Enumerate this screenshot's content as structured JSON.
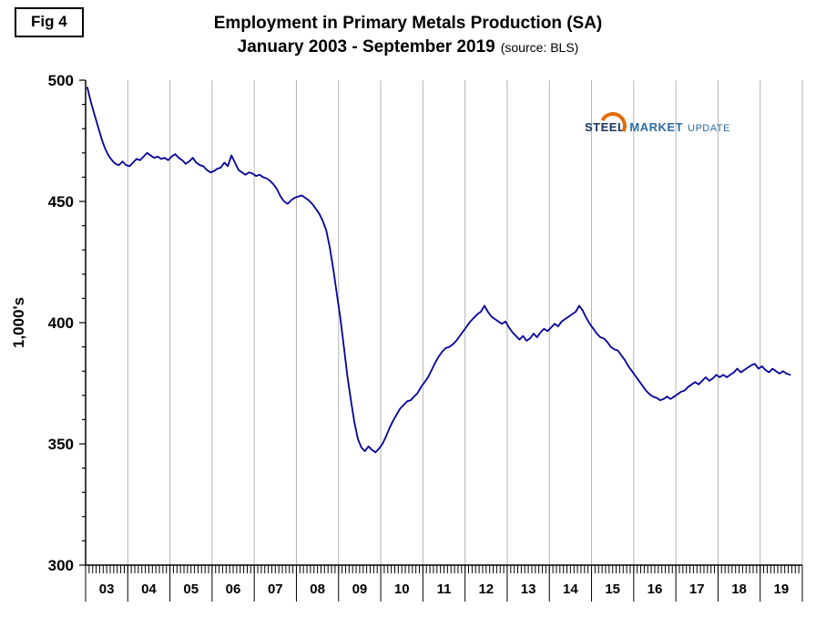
{
  "fig_label": "Fig 4",
  "logo": {
    "word1": "STEEL",
    "word2": "MARKET",
    "word3": "UPDATE",
    "swoosh_color": "#e36c0a"
  },
  "chart_data": {
    "type": "line",
    "title": "Employment in Primary Metals Production (SA)",
    "subtitle": "January 2003 - September 2019",
    "source": "(source: BLS)",
    "ylabel": "1,000's",
    "ylim": [
      300,
      500
    ],
    "y_ticks": [
      300,
      350,
      400,
      450,
      500
    ],
    "x_start": "2003-01",
    "x_end": "2019-09",
    "months_axis_total": 204,
    "grid": "vertical-only",
    "line_color": "#00009b",
    "grid_color": "#b3b3b3",
    "axis_color": "#000000",
    "year_labels": [
      "03",
      "04",
      "05",
      "06",
      "07",
      "08",
      "09",
      "10",
      "11",
      "12",
      "13",
      "14",
      "15",
      "16",
      "17",
      "18",
      "19"
    ],
    "values": [
      497,
      491,
      486,
      481,
      476,
      472,
      469,
      467,
      465.5,
      465,
      466.5,
      465,
      464.5,
      466,
      467.5,
      467,
      468.5,
      470,
      469,
      468,
      468.5,
      467.5,
      468,
      467,
      468.5,
      469.5,
      468,
      467,
      465.5,
      466.5,
      468,
      466,
      465,
      464.5,
      463,
      462,
      462.5,
      463.5,
      464,
      466,
      464.5,
      469,
      466,
      463,
      462,
      461,
      462,
      461.5,
      460.5,
      461,
      460,
      459.5,
      458.5,
      457,
      455,
      452,
      450,
      449,
      450.5,
      451.5,
      452,
      452.5,
      451.5,
      450.5,
      449,
      447,
      445,
      442,
      438,
      431,
      422,
      412,
      402,
      390,
      378,
      368,
      359,
      352,
      348.5,
      347,
      349,
      347.5,
      346.5,
      348,
      350,
      353,
      356.5,
      359.5,
      362,
      364.5,
      366,
      367.5,
      368,
      369.5,
      371,
      373.5,
      375.5,
      377.5,
      380.5,
      383.5,
      386,
      388,
      389.5,
      390,
      391,
      392.5,
      394.5,
      396.5,
      398.5,
      400.5,
      402,
      403.5,
      404.5,
      407,
      404.5,
      402.5,
      401.5,
      400.5,
      399.5,
      400.5,
      398,
      396,
      394.5,
      393,
      394.5,
      392.5,
      393.5,
      395.5,
      394,
      396,
      397.5,
      396.5,
      398,
      399.5,
      398.5,
      400.5,
      401.5,
      402.5,
      403.5,
      404.5,
      407,
      405,
      402,
      399.5,
      397.5,
      395.5,
      394,
      393.5,
      392,
      390,
      389,
      388.5,
      386.5,
      384.5,
      382,
      380,
      378,
      376,
      374,
      372,
      370.5,
      369.5,
      369,
      368,
      368.5,
      369.5,
      368.5,
      369.5,
      370.5,
      371.5,
      372,
      373.5,
      374.5,
      375.5,
      374.5,
      376,
      377.5,
      376,
      377,
      378.5,
      377.5,
      378.5,
      377.5,
      378.5,
      379.5,
      381,
      379.5,
      380.5,
      381.5,
      382.5,
      383,
      381,
      382,
      380.5,
      379.5,
      381,
      380,
      379,
      380,
      379,
      378.5
    ]
  }
}
